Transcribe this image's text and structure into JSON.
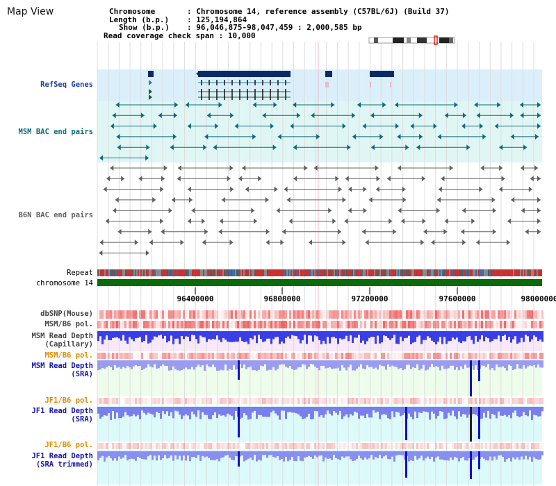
{
  "title": "Map View",
  "info": {
    "chromosome_key": "Chromosome",
    "chromosome_val": "Chromosome 14, reference assembly (C57BL/6J) (Build 37)",
    "length_key": "Length (b.p.)",
    "length_val": "125,194,864",
    "show_key": "Show (b.p.)",
    "show_val": "96,046,875-98,047,459 : 2,000,585 bp",
    "coverage_key": "Read coverage check span",
    "coverage_val": "10,000"
  },
  "tracks": {
    "refseq": "RefSeq Genes",
    "msm_bac": "MSM BAC end pairs",
    "b6n_bac": "B6N BAC end pairs",
    "repeat": "Repeat",
    "chromosome": "chromosome 14",
    "dbsnp": "dbSNP(Mouse)",
    "msm_b6_pol": "MSM/B6 pol.",
    "msm_depth_cap_1": "MSM Read Depth",
    "msm_depth_cap_2": "(Capillary)",
    "msm_b6_pol2": "MSM/B6 pol.",
    "msm_depth_sra_1": "MSM Read Depth",
    "msm_depth_sra_2": "(SRA)",
    "jf1_b6_pol": "JF1/B6 pol.",
    "jf1_depth_sra_1": "JF1 Read Depth",
    "jf1_depth_sra_2": "(SRA)",
    "jf1_b6_pol2": "JF1/B6 pol.",
    "jf1_depth_trim_1": "JF1 Read Depth",
    "jf1_depth_trim_2": "(SRA trimmed)"
  },
  "axis_ticks": [
    "96400000",
    "96800000",
    "97200000",
    "97600000",
    "98000000"
  ],
  "colors": {
    "refseq_bg": "#dbeffb",
    "refseq_label": "#1f3d9c",
    "bac_msm": "#0d6a7a",
    "bac_b6n": "#606060",
    "chromosome_green": "#0b6b0b",
    "pol_orange": "#e08a00",
    "depth_blue": "#1f2ccc",
    "snp_red": "#f05a5a"
  }
}
